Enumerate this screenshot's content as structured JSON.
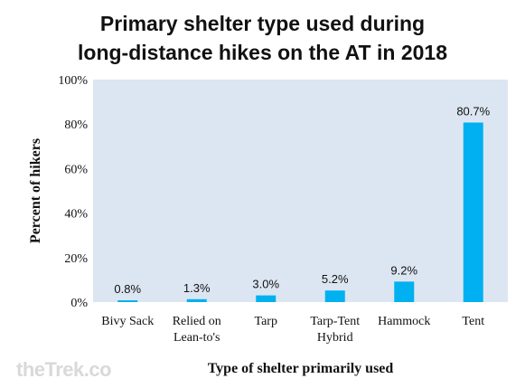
{
  "chart_data": {
    "type": "bar",
    "title_line1": "Primary shelter type used during",
    "title_line2": "long-distance hikes on the AT in 2018",
    "xlabel": "Type of shelter primarily used",
    "ylabel": "Percent of hikers",
    "ylim": [
      0,
      100
    ],
    "yticks": [
      0,
      20,
      40,
      60,
      80,
      100
    ],
    "ytick_labels": [
      "0%",
      "20%",
      "40%",
      "60%",
      "80%",
      "100%"
    ],
    "categories": [
      [
        "Bivy Sack"
      ],
      [
        "Relied on",
        "Lean-to's"
      ],
      [
        "Tarp"
      ],
      [
        "Tarp-Tent",
        "Hybrid"
      ],
      [
        "Hammock"
      ],
      [
        "Tent"
      ]
    ],
    "values": [
      0.8,
      1.3,
      3.0,
      5.2,
      9.2,
      80.7
    ],
    "data_labels": [
      "0.8%",
      "1.3%",
      "3.0%",
      "5.2%",
      "9.2%",
      "80.7%"
    ],
    "colors": {
      "bar": "#00b0f0",
      "plot_bg": "#dce6f2",
      "text": "#111111",
      "watermark": "#d9d9d9"
    }
  },
  "watermark": "theTrek.co"
}
